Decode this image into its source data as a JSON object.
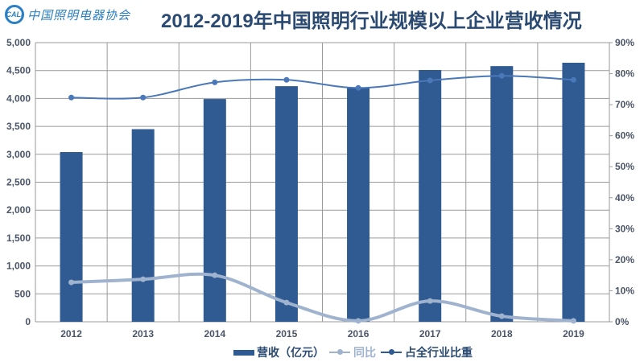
{
  "header": {
    "logo_mark": "CALI",
    "logo_text": "中国照明电器协会",
    "title": "2012-2019年中国照明行业规模以上企业营收情况"
  },
  "colors": {
    "bar": "#2f5a92",
    "yoy_line": "#9fb3cf",
    "share_line": "#4a78b8",
    "grid": "#9a9a9a",
    "title": "#2b4a72",
    "axis_text": "#4a5568"
  },
  "legend": {
    "items": [
      {
        "label": "营收（亿元）",
        "type": "bar"
      },
      {
        "label": "同比",
        "type": "line"
      },
      {
        "label": "占全行业比重",
        "type": "line"
      }
    ]
  },
  "chart_data": {
    "type": "bar",
    "title": "2012-2019年中国照明行业规模以上企业营收情况",
    "categories": [
      "2012",
      "2013",
      "2014",
      "2015",
      "2016",
      "2017",
      "2018",
      "2019"
    ],
    "series": [
      {
        "name": "营收（亿元）",
        "type": "bar",
        "axis": "left",
        "values": [
          3040,
          3450,
          3990,
          4220,
          4200,
          4510,
          4580,
          4640
        ]
      },
      {
        "name": "同比",
        "type": "line",
        "axis": "right",
        "unit": "%",
        "values": [
          12.7,
          13.7,
          15.0,
          6.2,
          0.3,
          6.7,
          1.8,
          0.3
        ]
      },
      {
        "name": "占全行业比重",
        "type": "line",
        "axis": "right",
        "unit": "%",
        "values": [
          72.3,
          72.3,
          77.2,
          78.0,
          75.4,
          77.8,
          79.3,
          78.0
        ]
      }
    ],
    "y_left": {
      "label": "",
      "ylim": [
        0,
        5000
      ],
      "ticks": [
        "0",
        "500",
        "1,000",
        "1,500",
        "2,000",
        "2,500",
        "3,000",
        "3,500",
        "4,000",
        "4,500",
        "5,000"
      ]
    },
    "y_right": {
      "label": "",
      "ylim": [
        0,
        90
      ],
      "ticks": [
        "0%",
        "10%",
        "20%",
        "30%",
        "40%",
        "50%",
        "60%",
        "70%",
        "80%",
        "90%"
      ]
    },
    "xlabel": "",
    "grid": true,
    "legend_position": "bottom"
  }
}
